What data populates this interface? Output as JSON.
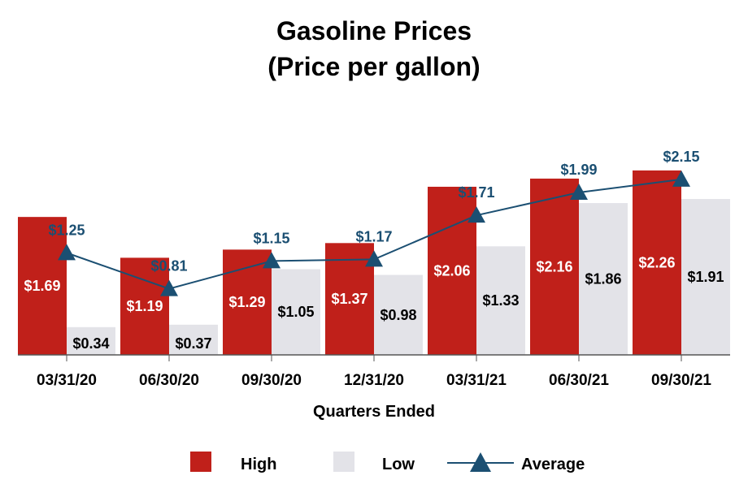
{
  "chart_data": {
    "type": "bar",
    "title": "Gasoline Prices",
    "subtitle": "(Price per gallon)",
    "xlabel": "Quarters Ended",
    "ylabel": "",
    "ylim": [
      0,
      2.6
    ],
    "grid": false,
    "legend_position": "bottom",
    "categories": [
      "03/31/20",
      "06/30/20",
      "09/30/20",
      "12/31/20",
      "03/31/21",
      "06/30/21",
      "09/30/21"
    ],
    "series": [
      {
        "name": "High",
        "kind": "bar",
        "color": "#C0201A",
        "values": [
          1.69,
          1.19,
          1.29,
          1.37,
          2.06,
          2.16,
          2.26
        ],
        "labels": [
          "$1.69",
          "$1.19",
          "$1.29",
          "$1.37",
          "$2.06",
          "$2.16",
          "$2.26"
        ]
      },
      {
        "name": "Low",
        "kind": "bar",
        "color": "#E3E3E8",
        "values": [
          0.34,
          0.37,
          1.05,
          0.98,
          1.33,
          1.86,
          1.91
        ],
        "labels": [
          "$0.34",
          "$0.37",
          "$1.05",
          "$0.98",
          "$1.33",
          "$1.86",
          "$1.91"
        ]
      },
      {
        "name": "Average",
        "kind": "line",
        "color": "#1B4F72",
        "values": [
          1.25,
          0.81,
          1.15,
          1.17,
          1.71,
          1.99,
          2.15
        ],
        "labels": [
          "$1.25",
          "$0.81",
          "$1.15",
          "$1.17",
          "$1.71",
          "$1.99",
          "$2.15"
        ]
      }
    ]
  }
}
